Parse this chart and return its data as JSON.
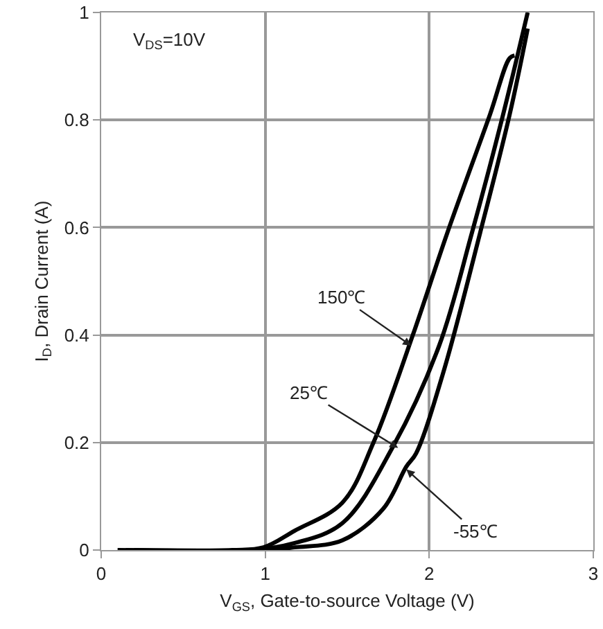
{
  "chart_data": {
    "type": "line",
    "xlabel": "V$_{GS}$, Gate-to-source Voltage (V)",
    "ylabel": "I$_{D}$, Drain Current (A)",
    "xlim": [
      0,
      3
    ],
    "xticks": [
      0,
      1,
      2,
      3
    ],
    "ylim": [
      0,
      1
    ],
    "yticks": [
      0,
      0.2,
      0.4,
      0.6,
      0.8,
      1
    ],
    "grid": true,
    "marker": "none",
    "line_style": "solid",
    "series": [
      {
        "color": "#000000",
        "x": [
          0.1,
          0.8,
          0.99,
          1.18,
          1.47,
          1.66,
          1.9,
          2.11,
          2.37,
          2.49,
          2.52
        ],
        "values": [
          0,
          0,
          0.005,
          0.036,
          0.088,
          0.2,
          0.4,
          0.59,
          0.81,
          0.915,
          0.92
        ]
      },
      {
        "color": "#000000",
        "x": [
          0.15,
          0.9,
          1.18,
          1.47,
          1.78,
          2.06,
          2.26,
          2.45,
          2.6
        ],
        "values": [
          0,
          0,
          0.013,
          0.05,
          0.193,
          0.38,
          0.59,
          0.81,
          1
        ]
      },
      {
        "color": "#000000",
        "x": [
          0.2,
          1,
          1.18,
          1.47,
          1.72,
          1.86,
          1.92,
          2.09,
          2.31,
          2.49,
          2.6
        ],
        "values": [
          0,
          0,
          0.005,
          0.018,
          0.077,
          0.155,
          0.18,
          0.335,
          0.59,
          0.81,
          0.97
        ]
      }
    ],
    "annotations": [
      "V$_{DS}$=10V",
      {
        "text": "150℃",
        "x": 1.89,
        "y": 0.38
      },
      {
        "text": "25℃",
        "x": 1.81,
        "y": 0.19
      },
      {
        "text": "-55℃",
        "x": 1.86,
        "y": 0.15
      }
    ]
  }
}
